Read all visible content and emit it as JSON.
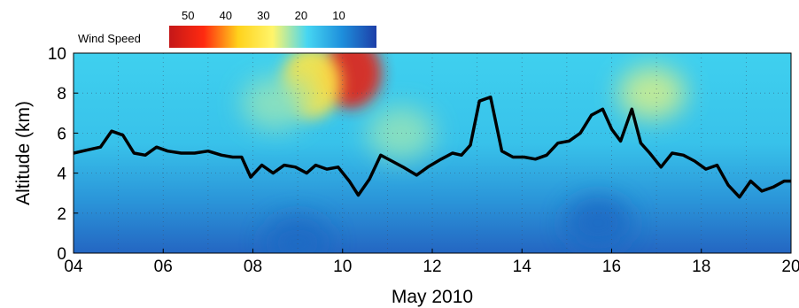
{
  "chart_data": {
    "type": "heatmap",
    "title": "",
    "xlabel": "May 2010",
    "ylabel": "Altitude (km)",
    "x_range": [
      4,
      20
    ],
    "y_range": [
      0,
      10
    ],
    "x_ticks": [
      "04",
      "06",
      "08",
      "10",
      "12",
      "14",
      "16",
      "18",
      "20"
    ],
    "y_ticks": [
      "0",
      "2",
      "4",
      "6",
      "8",
      "10"
    ],
    "grid": "dotted",
    "colorbar": {
      "title": "Wind Speed",
      "ticks": [
        "50",
        "40",
        "30",
        "20",
        "10"
      ],
      "tick_values": [
        50,
        40,
        30,
        20,
        10
      ],
      "range": [
        55,
        0
      ],
      "colors": [
        "#c41718",
        "#ff2a10",
        "#ffd21c",
        "#fff56b",
        "#46d6f2",
        "#1e8fdc",
        "#1d3fa8"
      ]
    },
    "wind_speed_features": [
      {
        "day": 10.2,
        "altitude_km": 9.0,
        "speed": 50
      },
      {
        "day": 9.3,
        "altitude_km": 8.5,
        "speed": 32
      },
      {
        "day": 8.5,
        "altitude_km": 7.5,
        "speed": 22
      },
      {
        "day": 16.9,
        "altitude_km": 8.0,
        "speed": 25
      },
      {
        "day": 11.3,
        "altitude_km": 6.0,
        "speed": 22
      },
      {
        "day": 15.7,
        "altitude_km": 1.5,
        "speed": 5
      },
      {
        "day": 9.0,
        "altitude_km": 0.5,
        "speed": 5
      }
    ],
    "series": [
      {
        "x": [
          4.0,
          4.3,
          4.6,
          4.85,
          5.1,
          5.35,
          5.6,
          5.85,
          6.1,
          6.4,
          6.7,
          7.0,
          7.3,
          7.55,
          7.75,
          7.95,
          8.2,
          8.45,
          8.7,
          8.95,
          9.2,
          9.4,
          9.65,
          9.9,
          10.15,
          10.35,
          10.6,
          10.85,
          11.1,
          11.35,
          11.65,
          11.9,
          12.2,
          12.45,
          12.65,
          12.85,
          13.05,
          13.3,
          13.55,
          13.8,
          14.05,
          14.3,
          14.55,
          14.8,
          15.05,
          15.3,
          15.55,
          15.8,
          16.0,
          16.2,
          16.45,
          16.65,
          16.85,
          17.1,
          17.35,
          17.6,
          17.85,
          18.1,
          18.35,
          18.6,
          18.85,
          19.1,
          19.35,
          19.6,
          19.85,
          20.0
        ],
        "y": [
          5.0,
          5.15,
          5.3,
          6.1,
          5.9,
          5.0,
          4.9,
          5.3,
          5.1,
          5.0,
          5.0,
          5.1,
          4.9,
          4.8,
          4.8,
          3.8,
          4.4,
          4.0,
          4.4,
          4.3,
          4.0,
          4.4,
          4.2,
          4.3,
          3.6,
          2.9,
          3.7,
          4.9,
          4.6,
          4.3,
          3.9,
          4.3,
          4.7,
          5.0,
          4.9,
          5.4,
          7.6,
          7.8,
          5.1,
          4.8,
          4.8,
          4.7,
          4.9,
          5.5,
          5.6,
          6.0,
          6.9,
          7.2,
          6.2,
          5.6,
          7.2,
          5.5,
          5.0,
          4.3,
          5.0,
          4.9,
          4.6,
          4.2,
          4.4,
          3.4,
          2.8,
          3.6,
          3.1,
          3.3,
          3.6,
          3.6
        ]
      }
    ]
  }
}
